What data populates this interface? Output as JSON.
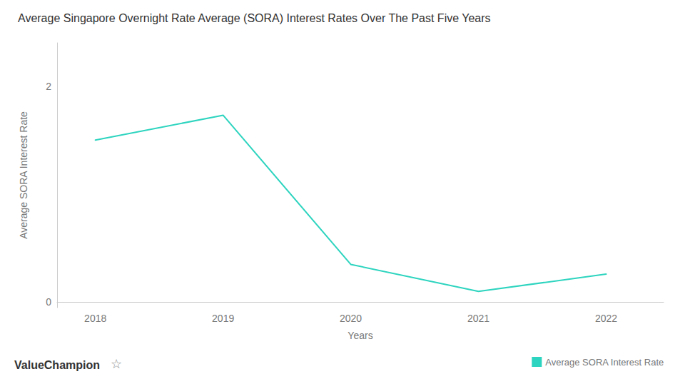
{
  "chart_data": {
    "type": "line",
    "title": "Average Singapore Overnight Rate Average (SORA) Interest Rates Over The Past Five Years",
    "xlabel": "Years",
    "ylabel": "Average SORA Interest Rate",
    "x": [
      2018,
      2019,
      2020,
      2021,
      2022
    ],
    "series": [
      {
        "name": "Average SORA Interest Rate",
        "color": "#2DD4BF",
        "values": [
          1.5,
          1.73,
          0.35,
          0.1,
          0.26
        ]
      }
    ],
    "xlim": [
      2017.7,
      2022.45
    ],
    "xticks": [
      2018,
      2019,
      2020,
      2021,
      2022
    ],
    "ylim": [
      -0.05,
      2.4
    ],
    "yticks": [
      0,
      2
    ],
    "grid": false,
    "legend": "lower right",
    "annotations": [
      "ValueChampion",
      "☆"
    ]
  }
}
